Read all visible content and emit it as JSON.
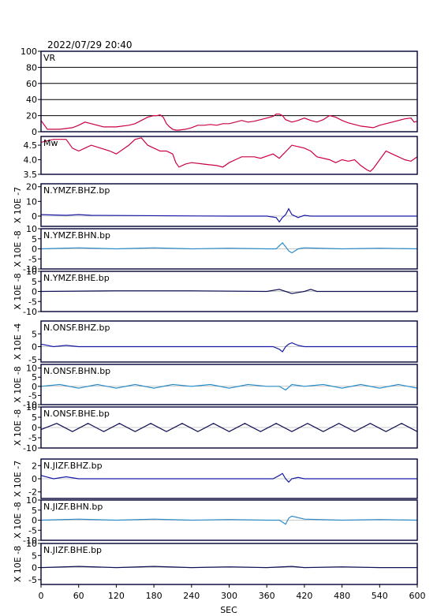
{
  "header": {
    "timestamp": "2022/07/29 20:40"
  },
  "colors": {
    "frame": "#000033",
    "vr_mw": "#cc0044",
    "bhz": "#1a1aa6",
    "bhn": "#2a8cc8",
    "bhe": "#111155"
  },
  "chart_data": [
    {
      "type": "line",
      "label": "VR",
      "ylim": [
        0,
        100
      ],
      "yticks": [
        0,
        20,
        40,
        60,
        80,
        100
      ],
      "grid": true,
      "series": [
        {
          "x": [
            0,
            10,
            30,
            50,
            60,
            70,
            80,
            100,
            120,
            140,
            150,
            160,
            170,
            180,
            185,
            190,
            195,
            200,
            205,
            210,
            215,
            220,
            230,
            240,
            250,
            260,
            270,
            280,
            290,
            300,
            310,
            320,
            330,
            340,
            350,
            360,
            370,
            375,
            380,
            385,
            390,
            400,
            410,
            420,
            430,
            440,
            450,
            460,
            470,
            480,
            490,
            500,
            510,
            520,
            530,
            540,
            560,
            580,
            590,
            595,
            600
          ],
          "y": [
            14,
            3,
            3,
            5,
            8,
            12,
            10,
            6,
            6,
            8,
            10,
            14,
            18,
            20,
            20,
            21,
            18,
            10,
            6,
            3,
            2,
            2,
            3,
            5,
            8,
            8,
            9,
            8,
            10,
            10,
            12,
            14,
            12,
            13,
            15,
            17,
            19,
            22,
            22,
            20,
            15,
            12,
            14,
            17,
            14,
            12,
            15,
            20,
            18,
            14,
            11,
            9,
            7,
            6,
            5,
            8,
            12,
            16,
            17,
            12,
            13
          ]
        }
      ]
    },
    {
      "type": "line",
      "label": "Mw",
      "ylim": [
        3.5,
        4.8
      ],
      "yticks": [
        3.5,
        4.0,
        4.5
      ],
      "series": [
        {
          "x": [
            0,
            20,
            40,
            50,
            60,
            70,
            80,
            95,
            110,
            120,
            140,
            150,
            160,
            170,
            180,
            190,
            200,
            210,
            215,
            220,
            230,
            240,
            260,
            280,
            290,
            300,
            310,
            320,
            340,
            350,
            370,
            380,
            400,
            420,
            430,
            440,
            460,
            470,
            480,
            490,
            500,
            510,
            520,
            525,
            530,
            540,
            550,
            560,
            570,
            580,
            590,
            600
          ],
          "y": [
            4.6,
            4.7,
            4.7,
            4.4,
            4.3,
            4.4,
            4.5,
            4.4,
            4.3,
            4.2,
            4.5,
            4.7,
            4.75,
            4.5,
            4.4,
            4.3,
            4.3,
            4.2,
            3.9,
            3.75,
            3.85,
            3.9,
            3.85,
            3.8,
            3.75,
            3.9,
            4.0,
            4.1,
            4.1,
            4.05,
            4.2,
            4.05,
            4.5,
            4.4,
            4.3,
            4.1,
            4.0,
            3.9,
            4.0,
            3.95,
            4.0,
            3.8,
            3.65,
            3.6,
            3.7,
            4.0,
            4.3,
            4.2,
            4.1,
            4.0,
            3.95,
            4.1
          ]
        }
      ]
    },
    {
      "type": "line",
      "label": "N.YMZF.BHZ.bp",
      "ylabel": "X 10E -7",
      "ylim": [
        -7,
        22
      ],
      "yticks": [
        0,
        10,
        20
      ],
      "series": [
        {
          "x": [
            0,
            40,
            60,
            80,
            300,
            360,
            375,
            380,
            385,
            390,
            395,
            400,
            410,
            420,
            430,
            600
          ],
          "y": [
            1,
            0.5,
            1,
            0.5,
            0,
            0,
            -1,
            -4,
            -1,
            1,
            5,
            1,
            -1,
            0.5,
            0,
            0
          ]
        }
      ]
    },
    {
      "type": "line",
      "label": "N.YMZF.BHN.bp",
      "ylabel": "X 10E -8",
      "ylim": [
        -10,
        10
      ],
      "yticks": [
        -10,
        -5,
        0,
        5,
        10
      ],
      "series": [
        {
          "x": [
            0,
            60,
            120,
            180,
            240,
            300,
            360,
            375,
            380,
            385,
            390,
            395,
            400,
            405,
            410,
            420,
            480,
            540,
            600
          ],
          "y": [
            0,
            0.5,
            0,
            0.5,
            0,
            0.3,
            0,
            0,
            1.5,
            3,
            1,
            -1,
            -2,
            -1,
            0,
            0.5,
            0,
            0.3,
            0
          ]
        }
      ]
    },
    {
      "type": "line",
      "label": "N.YMZF.BHE.bp",
      "ylabel": "X 10E -8",
      "ylim": [
        -10,
        10
      ],
      "yticks": [
        -10,
        -5,
        0,
        5,
        10
      ],
      "series": [
        {
          "x": [
            0,
            120,
            240,
            360,
            380,
            390,
            400,
            420,
            430,
            440,
            600
          ],
          "y": [
            0,
            0.3,
            0.3,
            0,
            1,
            0,
            -1,
            0,
            1,
            0,
            0
          ]
        }
      ]
    },
    {
      "type": "line",
      "label": "N.ONSF.BHZ.bp",
      "ylabel": "X 10E -4",
      "ylim": [
        -6,
        10
      ],
      "yticks": [
        -5,
        0,
        5
      ],
      "series": [
        {
          "x": [
            0,
            20,
            40,
            60,
            300,
            370,
            380,
            385,
            390,
            395,
            400,
            410,
            420,
            600
          ],
          "y": [
            1,
            0,
            0.5,
            0,
            0,
            0,
            -1,
            -2,
            0,
            1,
            1.5,
            0.5,
            0,
            0
          ]
        }
      ]
    },
    {
      "type": "line",
      "label": "N.ONSF.BHN.bp",
      "ylabel": "X 10E -8",
      "ylim": [
        -10,
        12
      ],
      "yticks": [
        -10,
        -5,
        0,
        5,
        10
      ],
      "series": [
        {
          "x": [
            0,
            30,
            60,
            90,
            120,
            150,
            180,
            210,
            240,
            270,
            300,
            330,
            360,
            380,
            390,
            400,
            420,
            450,
            480,
            510,
            540,
            570,
            600
          ],
          "y": [
            0,
            1,
            -1,
            1,
            -1,
            1,
            -1,
            1,
            0,
            1,
            -1,
            1,
            0,
            0,
            -2,
            1,
            0,
            1,
            -1,
            1,
            -1,
            1,
            -1
          ]
        }
      ]
    },
    {
      "type": "line",
      "label": "N.ONSF.BHE.bp",
      "ylabel": "X 10E -8",
      "ylim": [
        -10,
        10
      ],
      "yticks": [
        -10,
        -5,
        0,
        5,
        10
      ],
      "series": [
        {
          "x": [
            0,
            25,
            50,
            75,
            100,
            125,
            150,
            175,
            200,
            225,
            250,
            275,
            300,
            325,
            350,
            375,
            400,
            425,
            450,
            475,
            500,
            525,
            550,
            575,
            600
          ],
          "y": [
            -1,
            2,
            -2,
            2,
            -2,
            2,
            -2,
            2,
            -2,
            2,
            -2,
            2,
            -2,
            2,
            -2,
            2,
            -2,
            2,
            -2,
            2,
            -2,
            2,
            -2,
            2,
            -2
          ]
        }
      ]
    },
    {
      "type": "line",
      "label": "N.JIZF.BHZ.bp",
      "ylabel": "X 10E -7",
      "ylim": [
        -3,
        3
      ],
      "yticks": [
        -2,
        0,
        2
      ],
      "series": [
        {
          "x": [
            0,
            20,
            40,
            60,
            300,
            370,
            380,
            385,
            390,
            395,
            400,
            410,
            420,
            600
          ],
          "y": [
            0.5,
            0,
            0.3,
            0,
            0,
            0,
            0.5,
            0.8,
            0,
            -0.5,
            0,
            0.2,
            0,
            0
          ]
        }
      ]
    },
    {
      "type": "line",
      "label": "N.JIZF.BHN.bp",
      "ylabel": "X 10E -8",
      "ylim": [
        -10,
        10
      ],
      "yticks": [
        -10,
        -5,
        0,
        5,
        10
      ],
      "series": [
        {
          "x": [
            0,
            60,
            120,
            180,
            240,
            300,
            360,
            380,
            385,
            390,
            395,
            400,
            420,
            480,
            540,
            600
          ],
          "y": [
            0,
            0.5,
            0,
            0.5,
            0,
            0.3,
            0,
            0,
            -1,
            -2,
            1,
            2,
            0.5,
            0,
            0.3,
            0
          ]
        }
      ]
    },
    {
      "type": "line",
      "label": "N.JIZF.BHE.bp",
      "ylabel": "X 10E -8",
      "ylim": [
        -7,
        10
      ],
      "yticks": [
        -5,
        0,
        5,
        10
      ],
      "series": [
        {
          "x": [
            0,
            60,
            120,
            180,
            240,
            300,
            360,
            400,
            420,
            480,
            540,
            600
          ],
          "y": [
            0,
            0.5,
            0,
            0.5,
            0,
            0.3,
            0,
            0.5,
            0,
            0.3,
            0,
            0
          ]
        }
      ]
    }
  ],
  "xaxis": {
    "label": "SEC",
    "xlim": [
      0,
      600
    ],
    "ticks": [
      0,
      60,
      120,
      180,
      240,
      300,
      360,
      420,
      480,
      540,
      600
    ]
  }
}
